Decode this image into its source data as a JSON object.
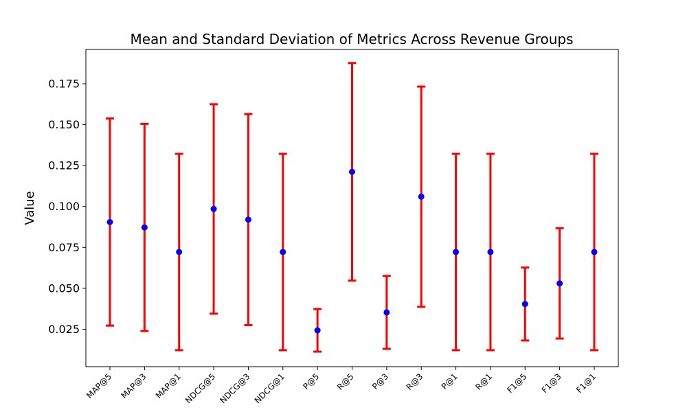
{
  "chart_data": {
    "type": "errorbar",
    "title": "Mean and Standard Deviation of Metrics Across Revenue Groups",
    "xlabel": "",
    "ylabel": "Value",
    "categories": [
      "MAP@5",
      "MAP@3",
      "MAP@1",
      "NDCG@5",
      "NDCG@3",
      "NDCG@1",
      "P@5",
      "R@5",
      "P@3",
      "R@3",
      "P@1",
      "R@1",
      "F1@5",
      "F1@3",
      "F1@1"
    ],
    "series": [
      {
        "means": [
          0.0905,
          0.0872,
          0.0722,
          0.0985,
          0.092,
          0.0722,
          0.0243,
          0.1212,
          0.0353,
          0.106,
          0.0722,
          0.0722,
          0.0404,
          0.053,
          0.0722
        ],
        "stds": [
          0.0633,
          0.0633,
          0.06,
          0.064,
          0.0645,
          0.06,
          0.013,
          0.0665,
          0.0223,
          0.0673,
          0.06,
          0.06,
          0.0223,
          0.0337,
          0.06
        ]
      }
    ],
    "yticks": [
      "0.025",
      "0.050",
      "0.075",
      "0.100",
      "0.125",
      "0.150",
      "0.175"
    ],
    "ylim": [
      0.0021,
      0.196
    ],
    "grid": false,
    "marker_color": "#0000ff",
    "errorbar_color": "#ff0000"
  }
}
